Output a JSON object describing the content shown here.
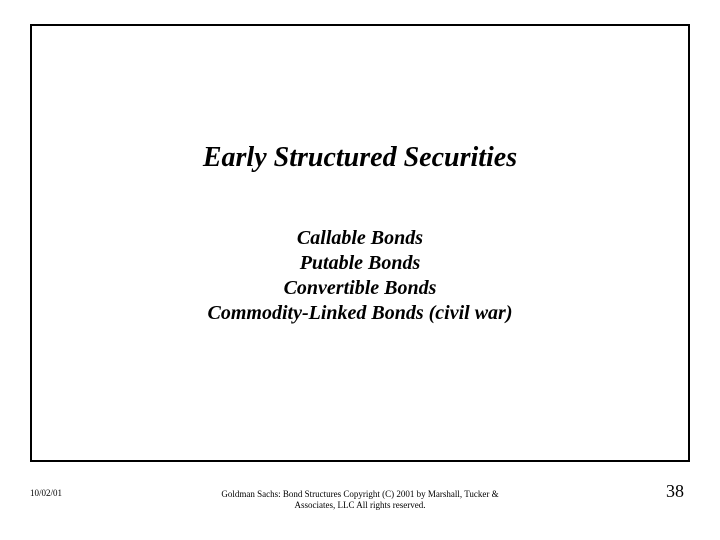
{
  "slide": {
    "title": "Early Structured Securities",
    "items": [
      "Callable Bonds",
      "Putable Bonds",
      "Convertible Bonds",
      "Commodity-Linked Bonds (civil war)"
    ]
  },
  "footer": {
    "date": "10/02/01",
    "center": "Goldman Sachs: Bond Structures   Copyright (C) 2001 by Marshall, Tucker & Associates, LLC  All rights reserved.",
    "page": "38"
  },
  "style": {
    "background_color": "#ffffff",
    "border_color": "#000000",
    "title_fontsize": 28,
    "body_fontsize": 20,
    "footer_fontsize": 9,
    "page_fontsize": 18,
    "text_color": "#000000"
  }
}
